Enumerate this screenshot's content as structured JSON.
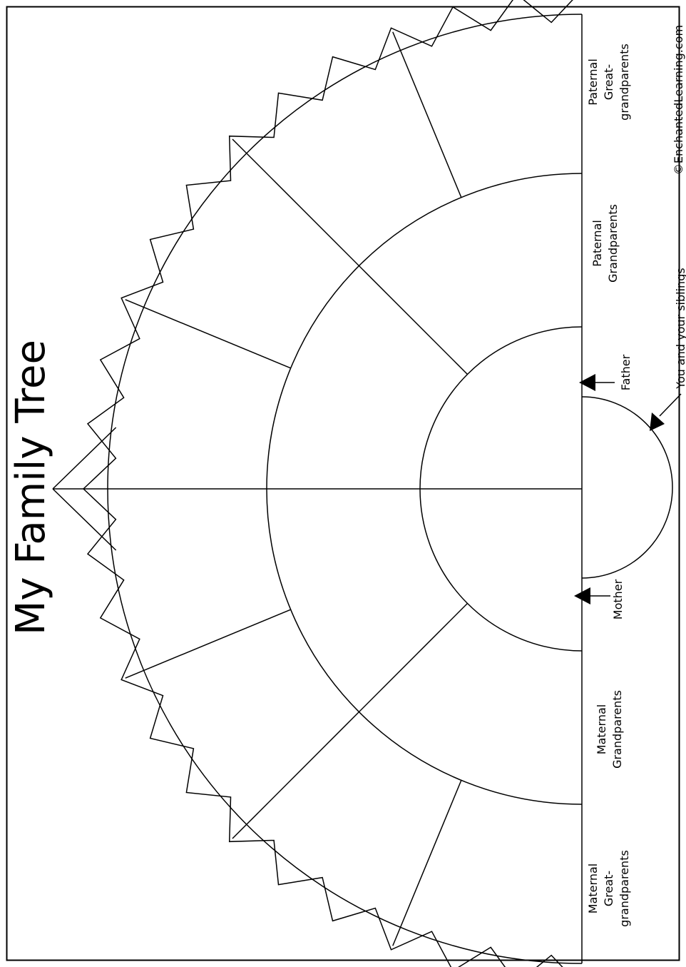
{
  "title": "My Family Tree",
  "credit": "©EnchantedLearning.com",
  "colors": {
    "ink": "#000000",
    "paper": "#ffffff"
  },
  "labels": {
    "paternal_great": [
      "Paternal",
      "Great-",
      "grandparents"
    ],
    "paternal_grand": [
      "Paternal",
      "Grandparents"
    ],
    "father": "Father",
    "siblings": "You and your siblings",
    "mother": "Mother",
    "maternal_grand": [
      "Maternal",
      "Grandparents"
    ],
    "maternal_great": [
      "Maternal",
      "Great-",
      "grandparents"
    ]
  }
}
